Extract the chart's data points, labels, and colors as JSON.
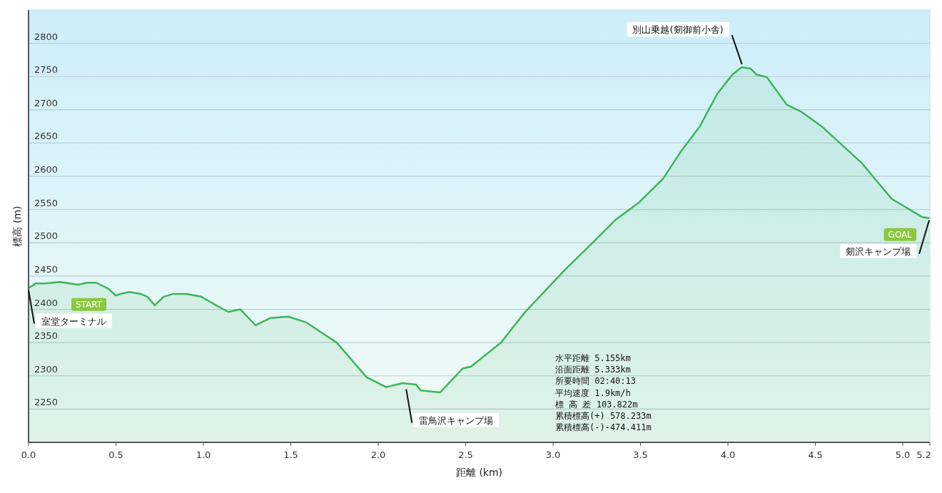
{
  "chart_data": {
    "type": "area",
    "xlabel": "距離 (km)",
    "ylabel": "標高 (m)",
    "x": [
      0,
      0.043,
      0.094,
      0.18,
      0.284,
      0.335,
      0.387,
      0.456,
      0.498,
      0.524,
      0.576,
      0.644,
      0.679,
      0.722,
      0.773,
      0.824,
      0.902,
      0.988,
      1.04,
      1.073,
      1.143,
      1.211,
      1.298,
      1.384,
      1.486,
      1.59,
      1.762,
      1.933,
      2.045,
      2.139,
      2.216,
      2.243,
      2.354,
      2.415,
      2.483,
      2.531,
      2.702,
      2.84,
      3.063,
      3.218,
      3.355,
      3.493,
      3.631,
      3.733,
      3.837,
      3.939,
      4.026,
      4.078,
      4.129,
      4.163,
      4.223,
      4.335,
      4.42,
      4.541,
      4.661,
      4.765,
      4.937,
      5.109,
      5.151
    ],
    "series": [
      {
        "color": "#3cb55a",
        "values": [
          2432,
          2439,
          2439,
          2441,
          2437,
          2440,
          2440,
          2431,
          2421,
          2423,
          2426,
          2423,
          2419,
          2406,
          2419,
          2423,
          2423,
          2419,
          2411,
          2406,
          2396,
          2400,
          2376,
          2387,
          2389,
          2380,
          2350,
          2298,
          2283,
          2289,
          2287,
          2278,
          2275,
          2292,
          2311,
          2314,
          2350,
          2396,
          2458,
          2498,
          2534,
          2561,
          2597,
          2638,
          2674,
          2724,
          2753,
          2764,
          2762,
          2753,
          2749,
          2708,
          2697,
          2674,
          2645,
          2620,
          2566,
          2539,
          2537
        ]
      }
    ],
    "xlim": [
      0,
      5.155
    ],
    "ylim": [
      2200,
      2850
    ],
    "xticks": [
      {
        "value": 0,
        "label": "0.0"
      },
      0.5,
      {
        "value": 1,
        "label": "1.0"
      },
      1.5,
      {
        "value": 2,
        "label": "2.0"
      },
      2.5,
      {
        "value": 3,
        "label": "3.0"
      },
      3.5,
      {
        "value": 4,
        "label": "4.0"
      },
      4.5,
      {
        "value": 5,
        "label": "5.0"
      },
      {
        "value": 5.155,
        "label": "5.2"
      }
    ],
    "yticks": [
      2250,
      2300,
      2350,
      2400,
      2450,
      2500,
      2550,
      2600,
      2650,
      2700,
      2750,
      2800
    ],
    "grid": "y",
    "annotations": [
      {
        "text": "室堂ターミナル",
        "x": 0,
        "y": 2432
      },
      "START",
      {
        "text": "雷鳥沢キャンプ場",
        "x": 2.16,
        "y": 2283
      },
      {
        "text": "別山乗越(剱御前小舎)",
        "x": 4.08,
        "y": 2764
      },
      {
        "text": "剱沢キャンプ場",
        "x": 5.151,
        "y": 2537
      },
      "GOAL",
      "水平距離 5.155km",
      "沿面距離 5.333km",
      "所要時間 02:40:13",
      "平均速度 1.9km/h",
      "標 高 差 103.822m",
      "累積標高(+) 578.233m",
      "累積標高(-)-474.411m"
    ]
  }
}
